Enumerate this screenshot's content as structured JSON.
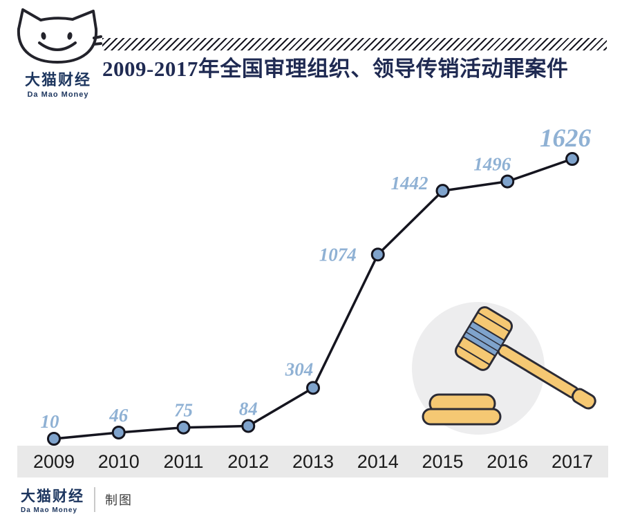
{
  "colors": {
    "title_navy": "#1f2a52",
    "label_blue": "#8fb1d4",
    "marker_blue": "#7fa3cc",
    "line_dark": "#15151f",
    "axis_band_gray": "#e9e9e9",
    "gavel_tan": "#f5c873"
  },
  "logo": {
    "brand": "大猫财经",
    "brand_en": "Da Mao Money"
  },
  "header": {
    "title": "2009-2017年全国审理组织、领导传销活动罪案件"
  },
  "chart_data": {
    "type": "line",
    "title": "2009-2017年全国审理组织、领导传销活动罪案件",
    "categories": [
      "2009",
      "2010",
      "2011",
      "2012",
      "2013",
      "2014",
      "2015",
      "2016",
      "2017"
    ],
    "values": [
      10,
      46,
      75,
      84,
      304,
      1074,
      1442,
      1496,
      1626
    ],
    "xlabel": "",
    "ylabel": "",
    "ylim": [
      0,
      1700
    ],
    "grid": false,
    "legend": false,
    "line_color": "#15151f",
    "marker_color": "#7fa3cc",
    "label_color": "#8fb1d4"
  },
  "footer": {
    "brand": "大猫财经",
    "brand_en": "Da Mao Money",
    "credit": "制图"
  }
}
